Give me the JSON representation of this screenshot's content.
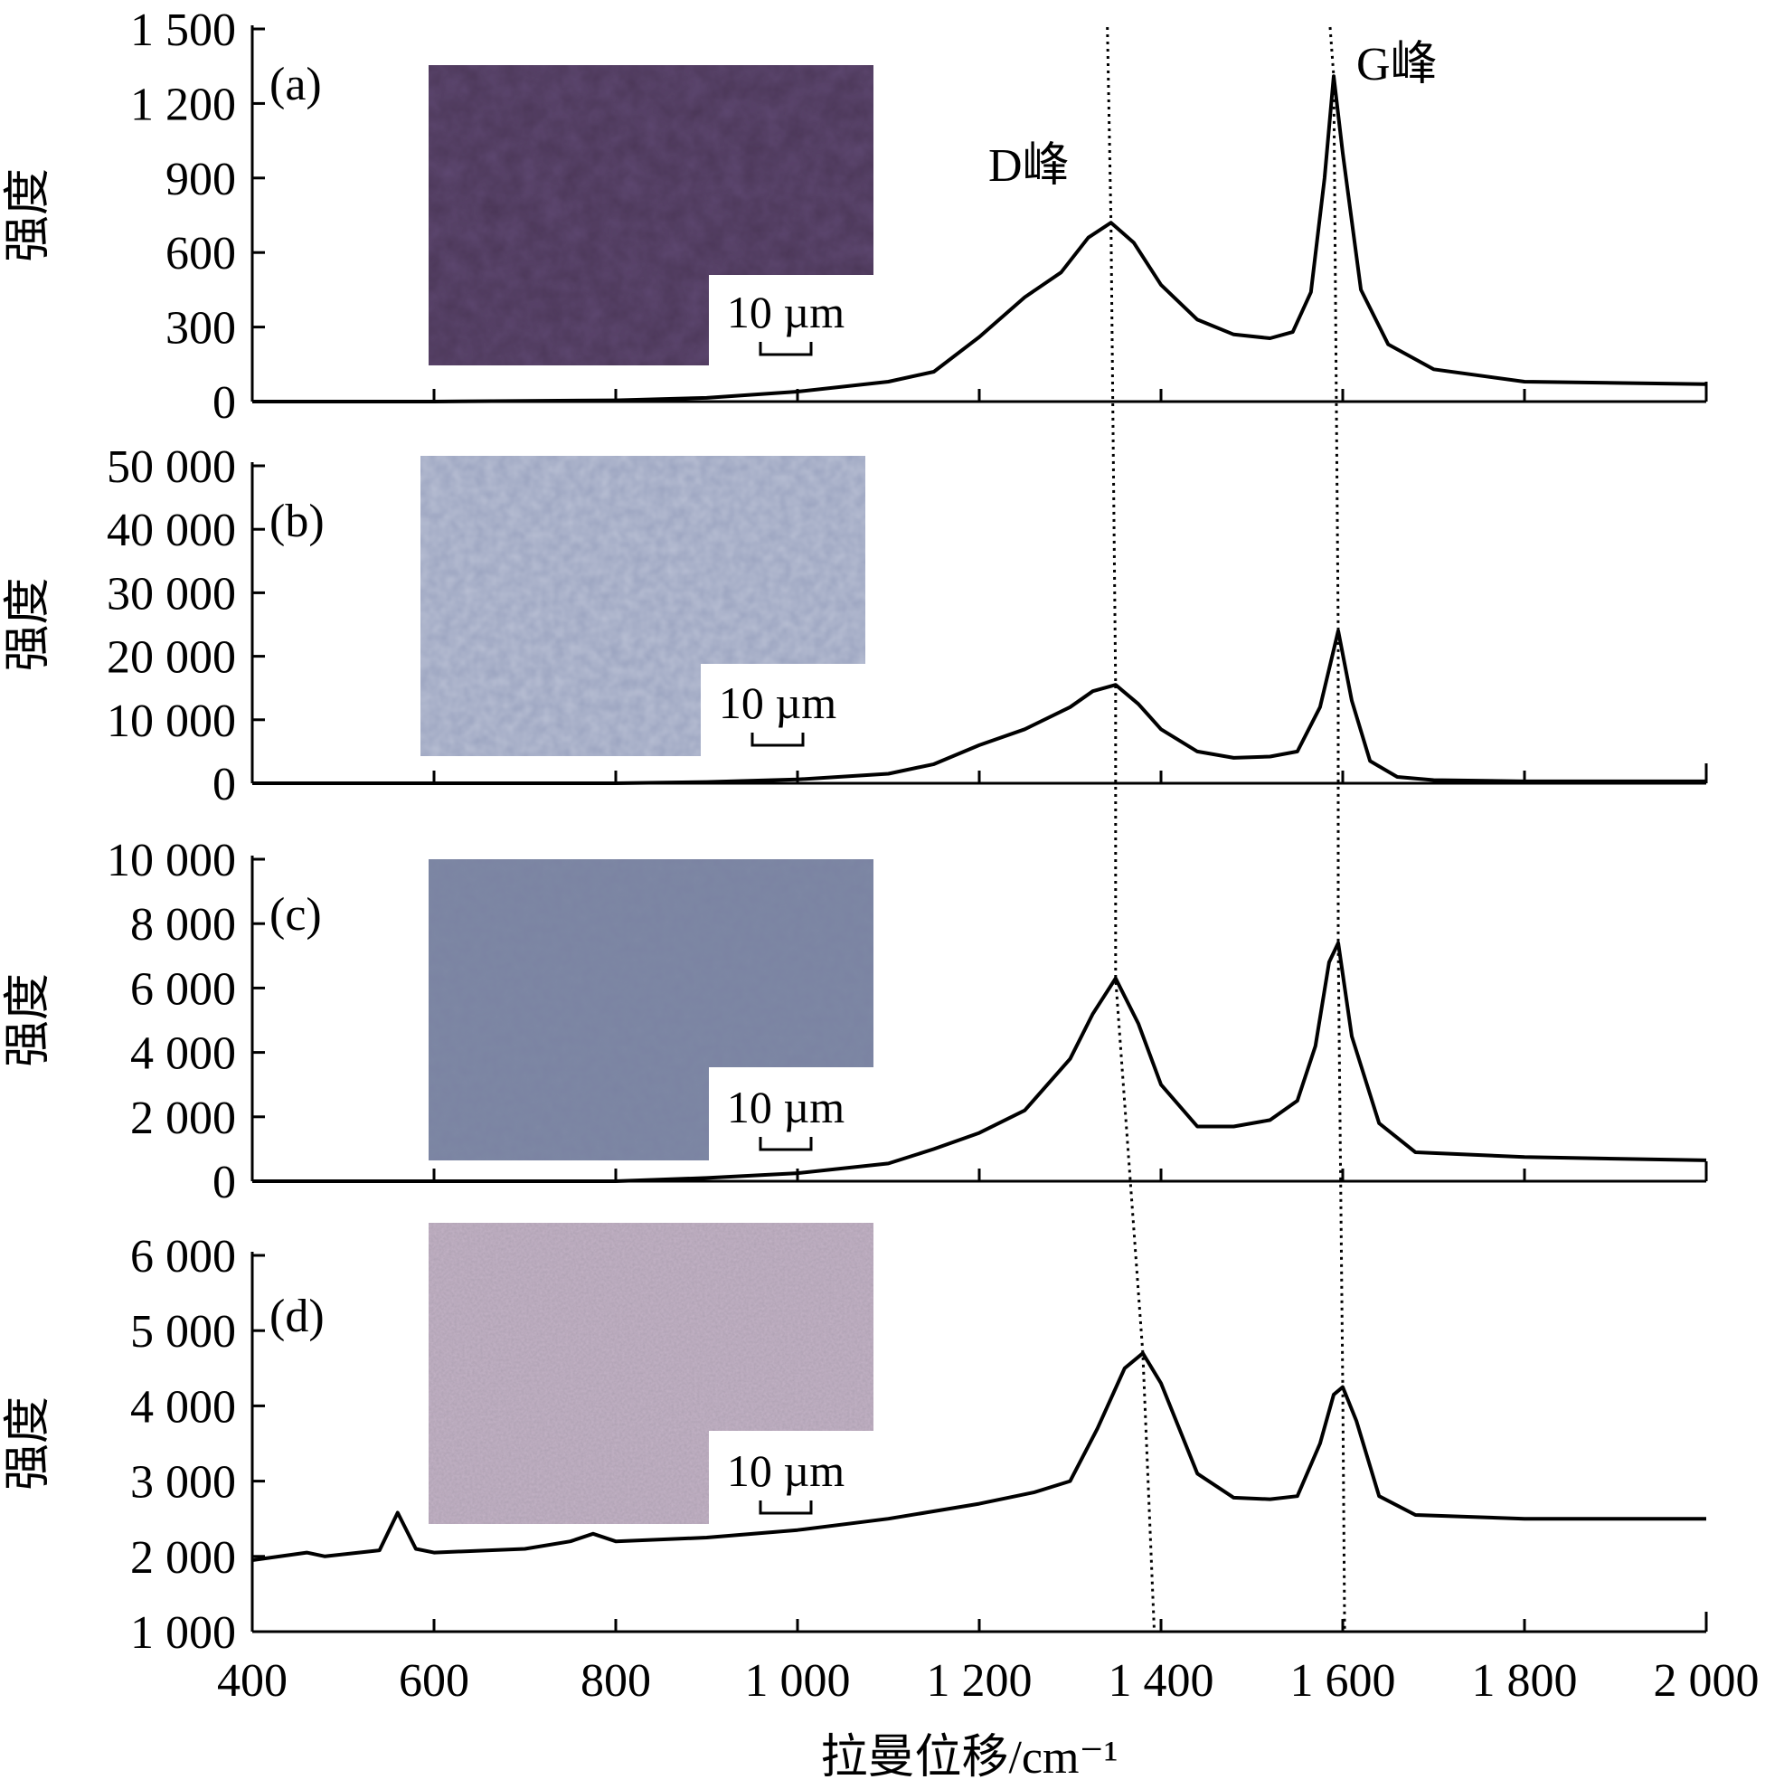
{
  "colors": {
    "line": "#000000",
    "background": "#ffffff"
  },
  "x_axis": {
    "label": "拉曼位移/cm⁻¹",
    "ticks": [
      400,
      600,
      800,
      1000,
      1200,
      1400,
      1600,
      1800,
      2000
    ],
    "tick_labels": [
      "400",
      "600",
      "800",
      "1 000",
      "1 200",
      "1 400",
      "1 600",
      "1 800",
      "2 000"
    ]
  },
  "peak_labels": {
    "d": "D峰",
    "g": "G峰"
  },
  "chart_data": [
    {
      "type": "line",
      "panel": "(a)",
      "ylabel": "强度",
      "xlim": [
        400,
        2000
      ],
      "ylim": [
        0,
        1500
      ],
      "y_ticks": [
        0,
        300,
        600,
        900,
        1200,
        1500
      ],
      "y_tick_labels": [
        "0",
        "300",
        "600",
        "900",
        "1 200",
        "1 500"
      ],
      "inset_image": {
        "description": "reflected-light micrograph",
        "scale_bar": "10 µm",
        "tint": "#4a3656"
      },
      "d_peak": 1345,
      "g_peak": 1590,
      "x": [
        400,
        600,
        800,
        900,
        1000,
        1100,
        1150,
        1200,
        1250,
        1290,
        1320,
        1345,
        1370,
        1400,
        1440,
        1480,
        1520,
        1545,
        1565,
        1580,
        1590,
        1600,
        1620,
        1650,
        1700,
        1800,
        1900,
        2000
      ],
      "y": [
        0,
        0,
        5,
        15,
        40,
        80,
        120,
        260,
        420,
        520,
        660,
        720,
        640,
        470,
        330,
        270,
        255,
        280,
        440,
        900,
        1310,
        1000,
        450,
        230,
        130,
        80,
        75,
        70
      ]
    },
    {
      "type": "line",
      "panel": "(b)",
      "ylabel": "强度",
      "xlim": [
        400,
        2000
      ],
      "ylim": [
        0,
        50000
      ],
      "y_ticks": [
        0,
        10000,
        20000,
        30000,
        40000,
        50000
      ],
      "y_tick_labels": [
        "0",
        "10 000",
        "20 000",
        "30 000",
        "40 000",
        "50 000"
      ],
      "inset_image": {
        "description": "reflected-light micrograph",
        "scale_bar": "10 µm",
        "tint": "#9aa3bf"
      },
      "d_peak": 1350,
      "g_peak": 1595,
      "x": [
        400,
        800,
        900,
        1000,
        1100,
        1150,
        1200,
        1250,
        1300,
        1325,
        1350,
        1375,
        1400,
        1440,
        1480,
        1520,
        1550,
        1575,
        1595,
        1610,
        1630,
        1660,
        1700,
        1800,
        2000
      ],
      "y": [
        0,
        0,
        200,
        600,
        1500,
        3000,
        6000,
        8500,
        12000,
        14500,
        15500,
        12500,
        8500,
        5000,
        4000,
        4200,
        5000,
        12000,
        24000,
        13000,
        3500,
        1000,
        500,
        300,
        300
      ]
    },
    {
      "type": "line",
      "panel": "(c)",
      "ylabel": "强度",
      "xlim": [
        400,
        2000
      ],
      "ylim": [
        0,
        10000
      ],
      "y_ticks": [
        0,
        2000,
        4000,
        6000,
        8000,
        10000
      ],
      "y_tick_labels": [
        "0",
        "2 000",
        "4 000",
        "6 000",
        "8 000",
        "10 000"
      ],
      "inset_image": {
        "description": "reflected-light micrograph",
        "scale_bar": "10 µm",
        "tint": "#7e88a4"
      },
      "d_peak": 1350,
      "g_peak": 1595,
      "x": [
        400,
        800,
        900,
        1000,
        1100,
        1150,
        1200,
        1250,
        1300,
        1325,
        1350,
        1375,
        1400,
        1440,
        1480,
        1520,
        1550,
        1570,
        1585,
        1595,
        1610,
        1640,
        1680,
        1800,
        2000
      ],
      "y": [
        0,
        0,
        100,
        250,
        550,
        1000,
        1500,
        2200,
        3800,
        5200,
        6300,
        4900,
        3000,
        1700,
        1700,
        1900,
        2500,
        4200,
        6800,
        7400,
        4500,
        1800,
        900,
        750,
        650
      ]
    },
    {
      "type": "line",
      "panel": "(d)",
      "ylabel": "强度",
      "xlim": [
        400,
        2000
      ],
      "ylim": [
        1000,
        6000
      ],
      "y_ticks": [
        1000,
        2000,
        3000,
        4000,
        5000,
        6000
      ],
      "y_tick_labels": [
        "1 000",
        "2 000",
        "3 000",
        "4 000",
        "5 000",
        "6 000"
      ],
      "inset_image": {
        "description": "reflected-light micrograph",
        "scale_bar": "10 µm",
        "tint": "#c4b3c6"
      },
      "d_peak": 1380,
      "g_peak": 1600,
      "x": [
        400,
        460,
        480,
        540,
        560,
        580,
        600,
        700,
        750,
        775,
        800,
        900,
        1000,
        1100,
        1200,
        1260,
        1300,
        1330,
        1360,
        1380,
        1400,
        1440,
        1480,
        1520,
        1550,
        1575,
        1590,
        1600,
        1615,
        1640,
        1680,
        1800,
        2000
      ],
      "y": [
        1950,
        2050,
        2000,
        2080,
        2580,
        2100,
        2050,
        2100,
        2200,
        2300,
        2200,
        2250,
        2350,
        2500,
        2700,
        2850,
        3000,
        3700,
        4500,
        4700,
        4300,
        3100,
        2780,
        2760,
        2800,
        3500,
        4150,
        4250,
        3800,
        2800,
        2550,
        2500,
        2500
      ]
    }
  ]
}
